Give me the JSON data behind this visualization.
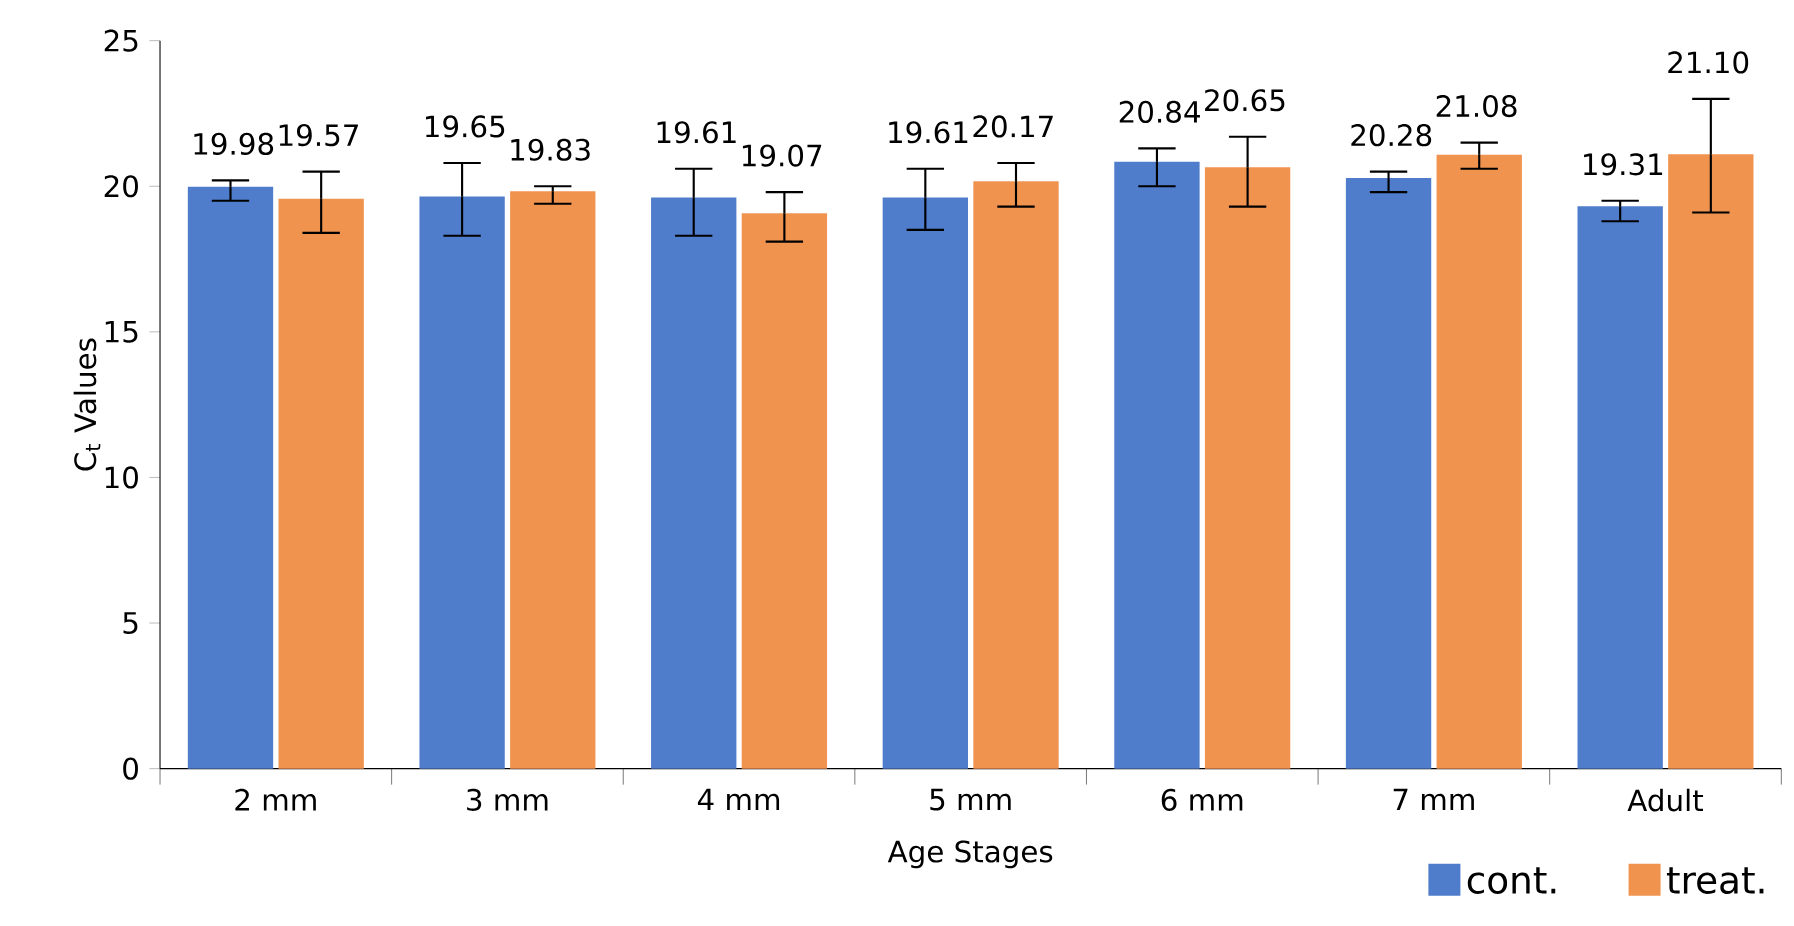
{
  "chart_data": {
    "type": "bar",
    "xlabel": "Age Stages",
    "ylabel": "C$_{t}$ Values",
    "categories": [
      "2 mm",
      "3 mm",
      "4 mm",
      "5 mm",
      "6 mm",
      "7 mm",
      "Adult"
    ],
    "series": [
      {
        "name": "cont.",
        "color": "#4f7ccb",
        "values": [
          19.98,
          19.65,
          19.61,
          19.61,
          20.84,
          20.28,
          19.31
        ],
        "value_labels": [
          "19.98",
          "19.65",
          "19.61",
          "19.61",
          "20.84",
          "20.28",
          "19.31"
        ],
        "errors": [
          [
            19.5,
            20.2
          ],
          [
            18.3,
            20.8
          ],
          [
            18.3,
            20.6
          ],
          [
            18.5,
            20.6
          ],
          [
            20.0,
            21.3
          ],
          [
            19.8,
            20.5
          ],
          [
            18.8,
            19.5
          ]
        ]
      },
      {
        "name": "treat.",
        "color": "#f0934f",
        "values": [
          19.57,
          19.83,
          19.07,
          20.17,
          20.65,
          21.08,
          21.1
        ],
        "value_labels": [
          "19.57",
          "19.83",
          "19.07",
          "20.17",
          "20.65",
          "21.08",
          "21.10"
        ],
        "errors": [
          [
            18.4,
            20.5
          ],
          [
            19.4,
            20.0
          ],
          [
            18.1,
            19.8
          ],
          [
            19.3,
            20.8
          ],
          [
            19.3,
            21.7
          ],
          [
            20.6,
            21.5
          ],
          [
            19.1,
            23.0
          ]
        ]
      }
    ],
    "ylim": [
      0,
      25
    ],
    "yticks": [
      0,
      5,
      10,
      15,
      20,
      25
    ],
    "grid": false,
    "legend": "bottom right"
  }
}
